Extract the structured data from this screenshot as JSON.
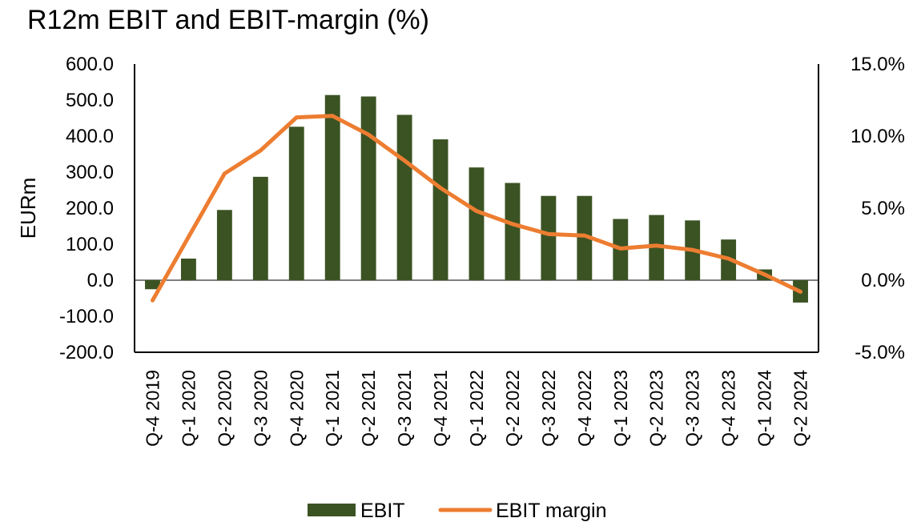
{
  "chart_data": {
    "type": "bar",
    "title": "R12m EBIT and EBIT-margin (%)",
    "ylabel": "EURm",
    "y2label": "",
    "categories": [
      "Q-4 2019",
      "Q-1 2020",
      "Q-2 2020",
      "Q-3 2020",
      "Q-4 2020",
      "Q-1 2021",
      "Q-2 2021",
      "Q-3 2021",
      "Q-4 2021",
      "Q-1 2022",
      "Q-2 2022",
      "Q-3 2022",
      "Q-4 2022",
      "Q-1 2023",
      "Q-2 2023",
      "Q-3 2023",
      "Q-4 2023",
      "Q-1 2024",
      "Q-2 2024"
    ],
    "series": [
      {
        "name": "EBIT",
        "type": "bar",
        "axis": "left",
        "color": "#3b5323",
        "values": [
          -25,
          60,
          195,
          287,
          426,
          514,
          510,
          459,
          391,
          313,
          270,
          234,
          234,
          170,
          181,
          166,
          113,
          30,
          -62
        ]
      },
      {
        "name": "EBIT margin",
        "type": "line",
        "axis": "right",
        "color": "#ed7d31",
        "values": [
          -1.4,
          3.0,
          7.4,
          9.0,
          11.3,
          11.4,
          10.1,
          8.3,
          6.4,
          4.8,
          3.9,
          3.2,
          3.1,
          2.2,
          2.4,
          2.1,
          1.5,
          0.4,
          -0.8
        ]
      }
    ],
    "ylim": [
      -200,
      600
    ],
    "yticks": [
      "-200.0",
      "-100.0",
      "0.0",
      "100.0",
      "200.0",
      "300.0",
      "400.0",
      "500.0",
      "600.0"
    ],
    "y2lim": [
      -5,
      15
    ],
    "y2ticks": [
      "-5.0%",
      "0.0%",
      "5.0%",
      "10.0%",
      "15.0%"
    ],
    "legend_position": "bottom",
    "grid": false
  }
}
